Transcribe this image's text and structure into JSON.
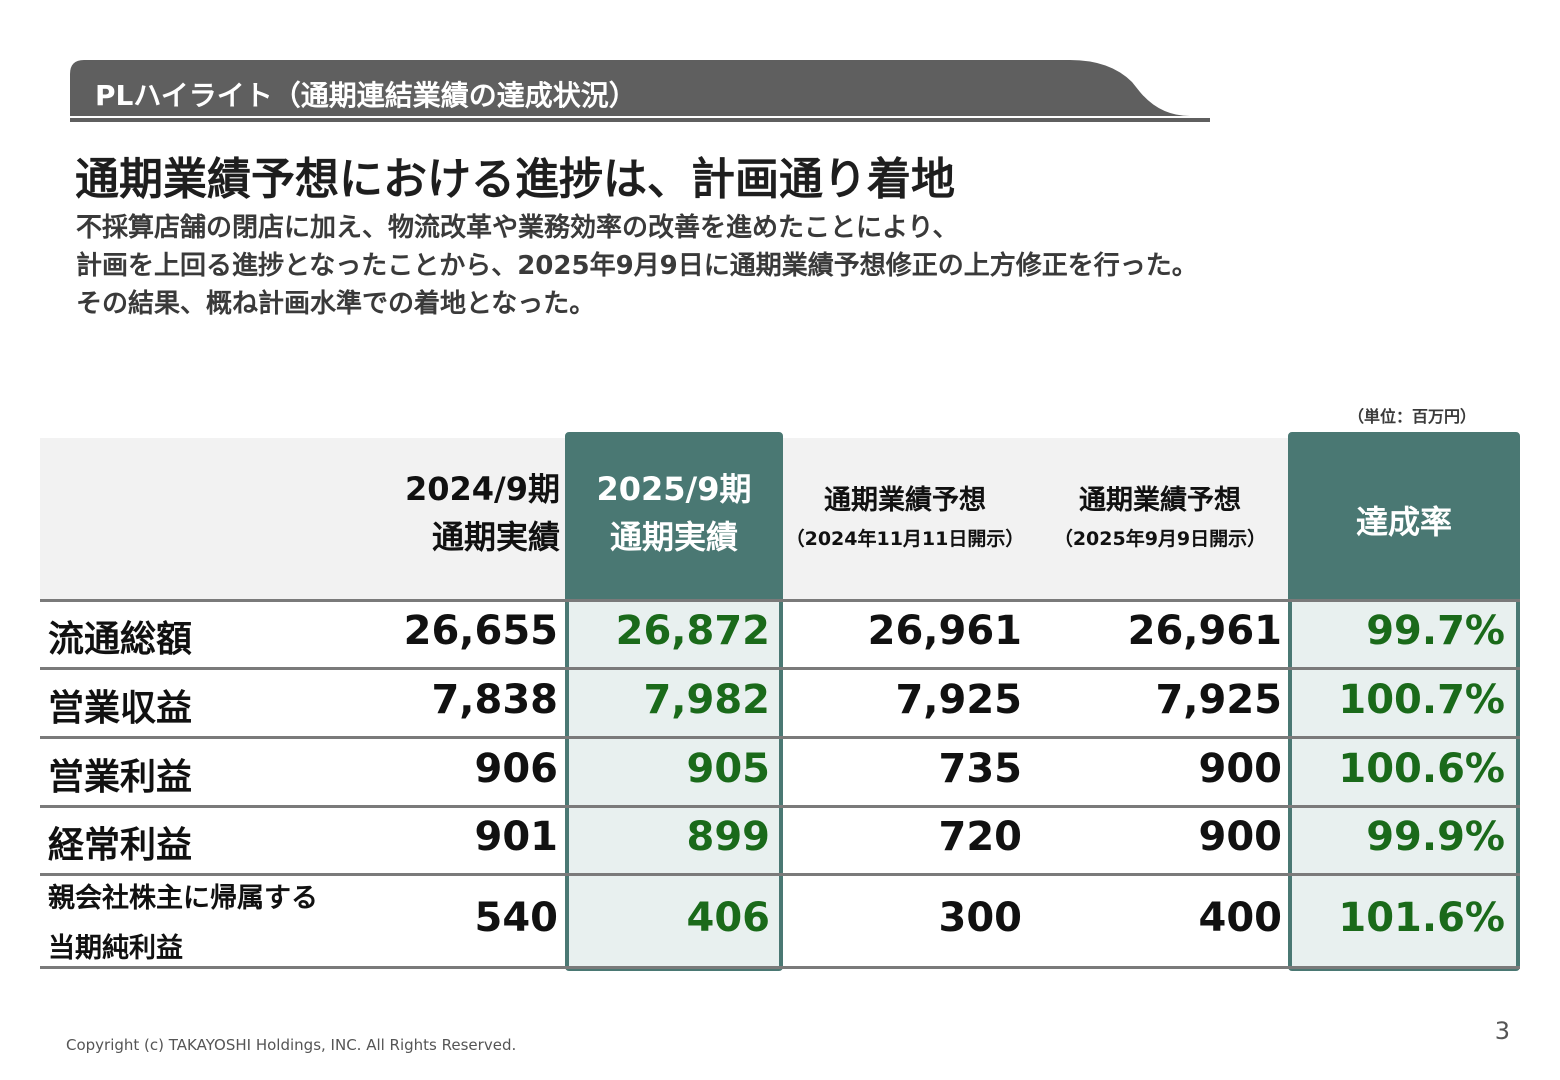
{
  "section": {
    "title": "PLハイライト（通期連結業績の達成状況）"
  },
  "headline": "通期業績予想における進捗は、計画通り着地",
  "body": {
    "line1": "不採算店舗の閉店に加え、物流改革や業務効率の改善を進めたことにより、",
    "line2": "計画を上回る進捗となったことから、2025年9月9日に通期業績予想修正の上方修正を行った。",
    "line3": "その結果、概ね計画水準での着地となった。"
  },
  "table": {
    "unit": "（単位：百万円）",
    "headers": [
      {
        "line1": "2024/9期",
        "line2": "通期実績"
      },
      {
        "line1": "2025/9期",
        "line2": "通期実績"
      },
      {
        "line1": "通期業績予想",
        "line2": "（2024年11月11日開示）"
      },
      {
        "line1": "通期業績予想",
        "line2": "（2025年9月9日開示）"
      },
      {
        "line1": "達成率"
      }
    ],
    "rows": [
      {
        "label": "流通総額",
        "values": [
          "26,655",
          "26,872",
          "26,961",
          "26,961",
          "99.7%"
        ]
      },
      {
        "label": "営業収益",
        "values": [
          "7,838",
          "7,982",
          "7,925",
          "7,925",
          "100.7%"
        ]
      },
      {
        "label": "営業利益",
        "values": [
          "906",
          "905",
          "735",
          "900",
          "100.6%"
        ]
      },
      {
        "label": "経常利益",
        "values": [
          "901",
          "899",
          "720",
          "900",
          "99.9%"
        ]
      },
      {
        "label_line1": "親会社株主に帰属する",
        "label_line2": "当期純利益",
        "values": [
          "540",
          "406",
          "300",
          "400",
          "101.6%"
        ]
      }
    ]
  },
  "colors": {
    "banner": "#5f5f5f",
    "accent": "#4a7873",
    "highlight_text": "#1a6a1a",
    "highlight_bg": "#e8f0ef"
  },
  "footer": {
    "copyright": "Copyright (c) TAKAYOSHI Holdings, INC.  All Rights Reserved.",
    "page": "3"
  }
}
